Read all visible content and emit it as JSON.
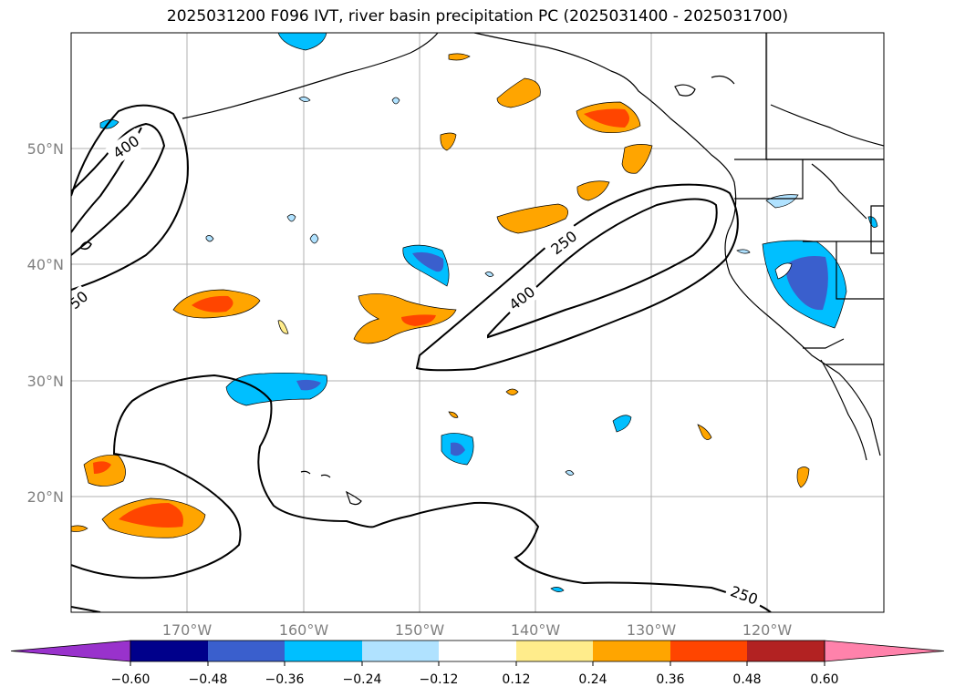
{
  "title": "2025031200 F096 IVT, river basin precipitation PC (2025031400 - 2025031700)",
  "map": {
    "lon_labels": [
      "170°W",
      "160°W",
      "150°W",
      "140°W",
      "130°W",
      "120°W"
    ],
    "lat_labels": [
      "50°N",
      "40°N",
      "30°N",
      "20°N"
    ],
    "contour_labels": [
      "400",
      "250",
      "400",
      "250"
    ],
    "edge_label": "50"
  },
  "colorbar": {
    "colors": [
      "#9932cc",
      "#00008b",
      "#3a5fcd",
      "#00bfff",
      "#b0e2ff",
      "#ffffff",
      "#ffec8b",
      "#ffa500",
      "#ff4500",
      "#b22222",
      "#ff82ab"
    ],
    "tick_labels": [
      "−0.60",
      "−0.48",
      "−0.36",
      "−0.24",
      "−0.12",
      "0.12",
      "0.24",
      "0.36",
      "0.48",
      "0.60"
    ]
  }
}
